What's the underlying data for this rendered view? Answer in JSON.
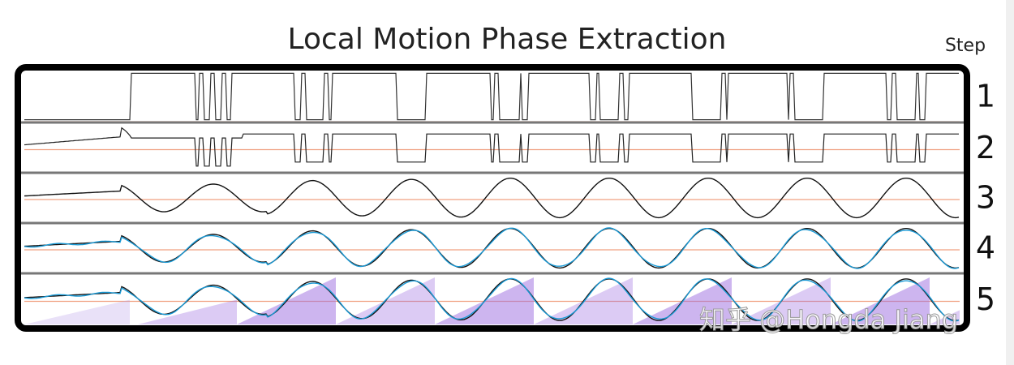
{
  "header": {
    "title": "Local Motion Phase Extraction",
    "step_label": "Step"
  },
  "steps": [
    "1",
    "2",
    "3",
    "4",
    "5"
  ],
  "watermark": "知乎 @Hongda Jiang"
}
